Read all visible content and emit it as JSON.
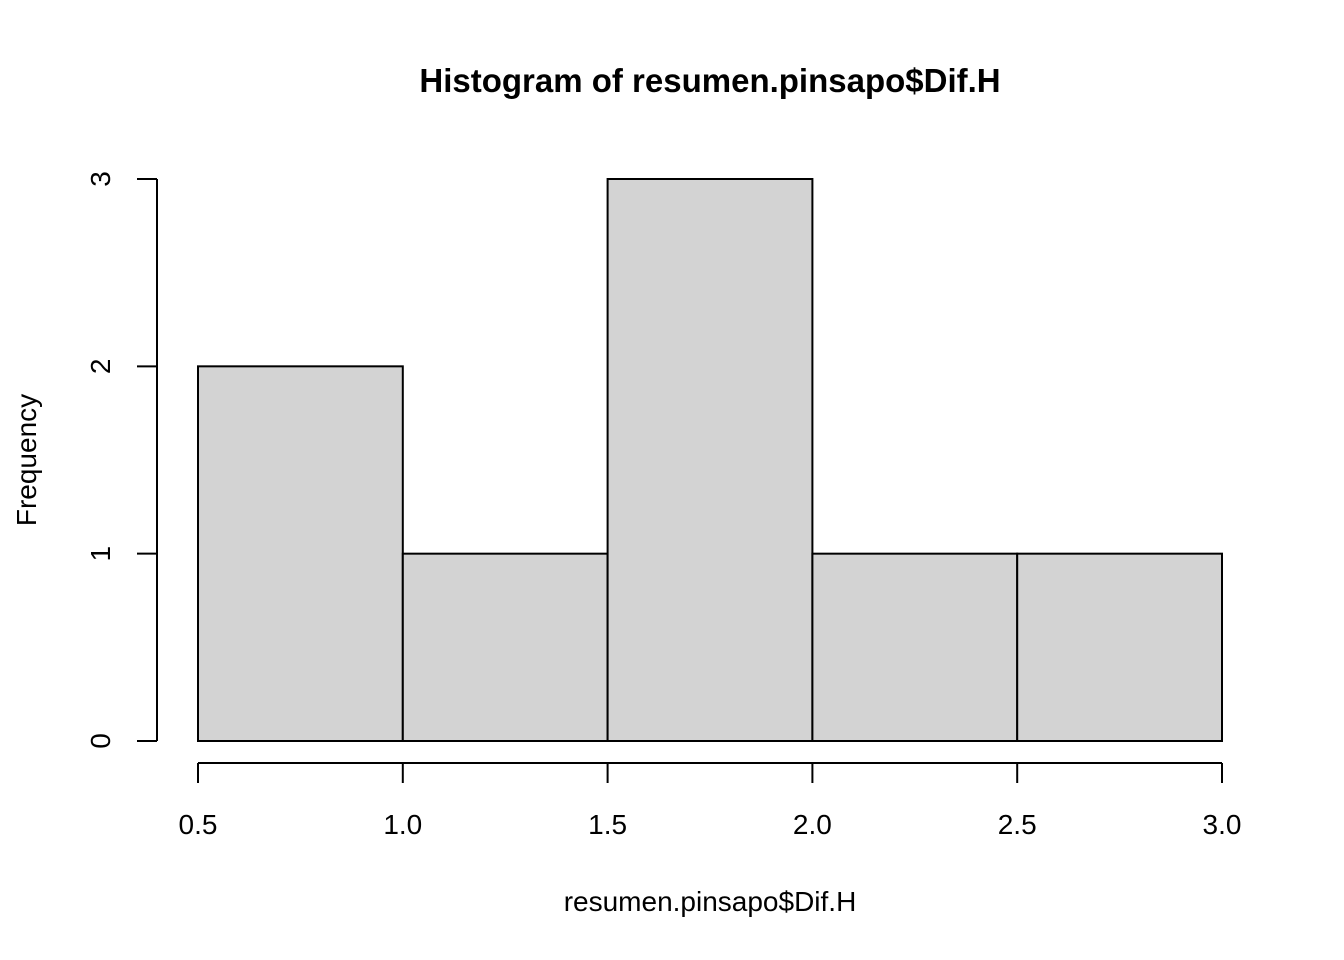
{
  "chart_data": {
    "type": "bar",
    "title": "Histogram of resumen.pinsapo$Dif.H",
    "xlabel": "resumen.pinsapo$Dif.H",
    "ylabel": "Frequency",
    "bins": [
      {
        "from": 0.5,
        "to": 1.0,
        "count": 2
      },
      {
        "from": 1.0,
        "to": 1.5,
        "count": 1
      },
      {
        "from": 1.5,
        "to": 2.0,
        "count": 3
      },
      {
        "from": 2.0,
        "to": 2.5,
        "count": 1
      },
      {
        "from": 2.5,
        "to": 3.0,
        "count": 1
      }
    ],
    "xlim": [
      0.5,
      3.0
    ],
    "ylim": [
      0,
      3
    ],
    "xticks": [
      "0.5",
      "1.0",
      "1.5",
      "2.0",
      "2.5",
      "3.0"
    ],
    "yticks": [
      "0",
      "1",
      "2",
      "3"
    ],
    "bar_color": "#d3d3d3",
    "grid": false,
    "legend": "none"
  }
}
